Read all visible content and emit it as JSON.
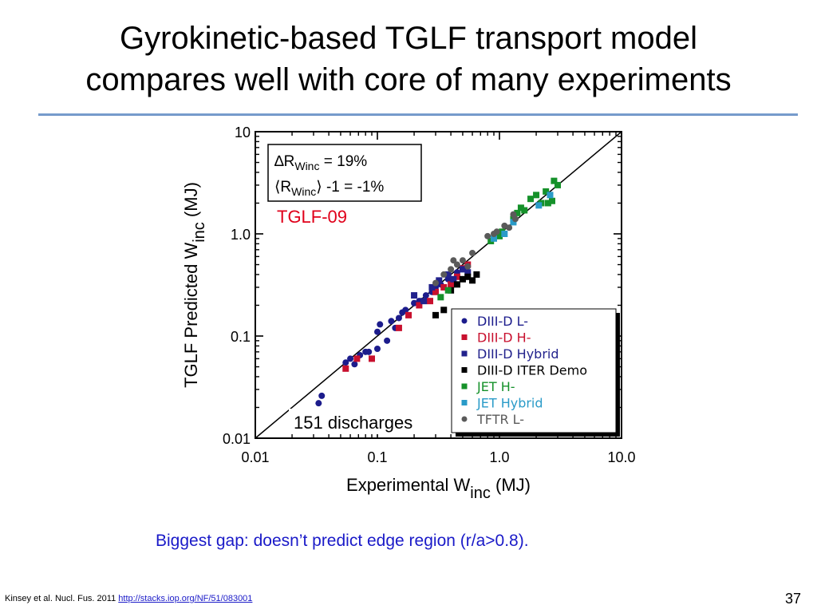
{
  "title": {
    "line1": "Gyrokinetic-based TGLF transport model",
    "line2": "compares well with core of many experiments"
  },
  "colors": {
    "caption": "#1a1ac8",
    "rule": "#6b8fc6",
    "fit_label": "#e0001a"
  },
  "caption": "Biggest gap:  doesn’t predict edge region (r/a>0.8).",
  "citation": {
    "text": "Kinsey et al. Nucl. Fus. 2011 ",
    "link": "http://stacks.iop.org/NF/51/083001"
  },
  "page_number": "37",
  "chart_data": {
    "type": "scatter",
    "xscale": "log",
    "yscale": "log",
    "xlim": [
      0.01,
      10.0
    ],
    "ylim": [
      0.01,
      10
    ],
    "xlabel": {
      "main": "Experimental W",
      "sub": "inc",
      "unit": " (MJ)"
    },
    "ylabel": {
      "main": "TGLF Predicted  W",
      "sub": "inc",
      "unit": " (MJ)"
    },
    "xticks": [
      "0.01",
      "0.1",
      "1.0",
      "10.0"
    ],
    "yticks": [
      "0.01",
      "0.1",
      "1.0",
      "10"
    ],
    "reference_line": "y = x",
    "stats": {
      "line1_prefix": "∆R",
      "line1_sub": "Winc",
      "line1_suffix": " = 19%",
      "line2_prefix": "⟨R",
      "line2_sub": "Winc",
      "line2_suffix": "⟩ -1 = -1%"
    },
    "model_label": "TGLF-09",
    "count_label": "151 discharges",
    "series": [
      {
        "name": "DIII-D L-",
        "marker": "circle",
        "color": "#1c1c8c",
        "points": [
          [
            0.033,
            0.022
          ],
          [
            0.035,
            0.026
          ],
          [
            0.055,
            0.055
          ],
          [
            0.06,
            0.06
          ],
          [
            0.065,
            0.053
          ],
          [
            0.072,
            0.065
          ],
          [
            0.08,
            0.07
          ],
          [
            0.085,
            0.07
          ],
          [
            0.1,
            0.075
          ],
          [
            0.1,
            0.11
          ],
          [
            0.105,
            0.13
          ],
          [
            0.12,
            0.09
          ],
          [
            0.13,
            0.14
          ],
          [
            0.14,
            0.12
          ],
          [
            0.15,
            0.15
          ],
          [
            0.16,
            0.17
          ],
          [
            0.17,
            0.18
          ],
          [
            0.2,
            0.21
          ],
          [
            0.22,
            0.22
          ],
          [
            0.25,
            0.25
          ],
          [
            0.28,
            0.27
          ],
          [
            0.3,
            0.3
          ],
          [
            0.33,
            0.32
          ],
          [
            0.38,
            0.36
          ],
          [
            0.45,
            0.42
          ]
        ]
      },
      {
        "name": "DIII-D H-",
        "marker": "square",
        "color": "#c8102e",
        "points": [
          [
            0.055,
            0.048
          ],
          [
            0.068,
            0.06
          ],
          [
            0.09,
            0.06
          ],
          [
            0.15,
            0.12
          ],
          [
            0.18,
            0.16
          ],
          [
            0.22,
            0.2
          ],
          [
            0.27,
            0.22
          ],
          [
            0.3,
            0.27
          ],
          [
            0.35,
            0.3
          ],
          [
            0.4,
            0.32
          ],
          [
            0.45,
            0.38
          ],
          [
            0.5,
            0.46
          ],
          [
            0.55,
            0.5
          ]
        ]
      },
      {
        "name": "DIII-D Hybrid",
        "marker": "square",
        "color": "#22228c",
        "points": [
          [
            0.2,
            0.25
          ],
          [
            0.24,
            0.22
          ],
          [
            0.28,
            0.3
          ],
          [
            0.32,
            0.35
          ],
          [
            0.38,
            0.4
          ],
          [
            0.42,
            0.36
          ],
          [
            0.5,
            0.45
          ],
          [
            0.55,
            0.42
          ]
        ]
      },
      {
        "name": "DIII-D ITER Demo",
        "marker": "square",
        "color": "#000000",
        "points": [
          [
            0.3,
            0.16
          ],
          [
            0.35,
            0.18
          ],
          [
            0.4,
            0.28
          ],
          [
            0.45,
            0.32
          ],
          [
            0.5,
            0.36
          ],
          [
            0.55,
            0.38
          ],
          [
            0.6,
            0.35
          ],
          [
            0.65,
            0.4
          ]
        ]
      },
      {
        "name": "JET H-",
        "marker": "square",
        "color": "#15912a",
        "points": [
          [
            0.33,
            0.24
          ],
          [
            0.38,
            0.28
          ],
          [
            0.85,
            0.85
          ],
          [
            1.0,
            0.95
          ],
          [
            1.05,
            1.05
          ],
          [
            1.3,
            1.4
          ],
          [
            1.4,
            1.6
          ],
          [
            1.5,
            1.8
          ],
          [
            1.6,
            1.7
          ],
          [
            1.8,
            2.2
          ],
          [
            2.0,
            2.4
          ],
          [
            2.2,
            2.0
          ],
          [
            2.4,
            2.6
          ],
          [
            2.5,
            2.0
          ],
          [
            2.7,
            2.1
          ],
          [
            2.8,
            3.3
          ],
          [
            3.0,
            3.0
          ]
        ]
      },
      {
        "name": "JET Hybrid",
        "marker": "square",
        "color": "#2a9bc8",
        "points": [
          [
            0.9,
            0.9
          ],
          [
            1.1,
            1.0
          ],
          [
            1.3,
            1.3
          ],
          [
            2.1,
            1.9
          ],
          [
            2.6,
            2.4
          ]
        ]
      },
      {
        "name": "TFTR L-",
        "marker": "circle",
        "color": "#5a5a5a",
        "points": [
          [
            0.3,
            0.33
          ],
          [
            0.35,
            0.4
          ],
          [
            0.4,
            0.45
          ],
          [
            0.42,
            0.55
          ],
          [
            0.45,
            0.5
          ],
          [
            0.5,
            0.55
          ],
          [
            0.55,
            0.48
          ],
          [
            0.6,
            0.65
          ],
          [
            0.8,
            0.95
          ],
          [
            0.9,
            1.0
          ],
          [
            0.95,
            1.05
          ],
          [
            1.1,
            1.2
          ],
          [
            1.2,
            1.15
          ],
          [
            1.3,
            1.55
          ],
          [
            1.35,
            1.4
          ]
        ]
      }
    ]
  }
}
